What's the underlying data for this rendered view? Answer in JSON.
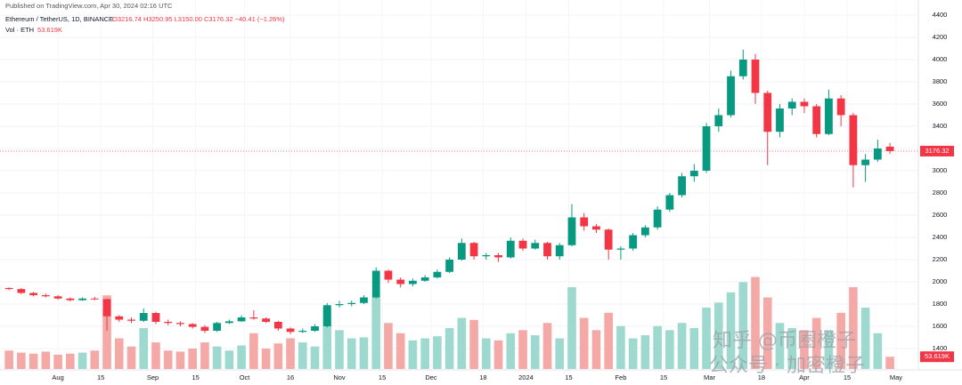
{
  "chart_data": {
    "type": "candlestick",
    "published": "Published on TradingView.com, Apr 30, 2024 02:16 UTC",
    "symbol": "Ethereum / TetherUS, 1D, BINANCE",
    "ohlc_label": "O3216.74 H3250.95 L3150.00 C3176.32 −40.41 (−1.26%)",
    "volume_title": "Vol · ETH",
    "volume_label": "53.619K",
    "watermark": [
      "知乎 @币圈橙子",
      "公众号 · 加密橙子"
    ],
    "up_color": "#089981",
    "down_color": "#f23645",
    "volume_up_color": "#9ed9d0",
    "volume_down_color": "#f5a9a7",
    "x": [
      -16,
      -12,
      -8,
      -4,
      0,
      4,
      8,
      12,
      16,
      20,
      24,
      28,
      32,
      36,
      40,
      44,
      48,
      52,
      56,
      60,
      64,
      68,
      72,
      76,
      80,
      84,
      88,
      92,
      96,
      100,
      104,
      108,
      112,
      116,
      120,
      124,
      128,
      132,
      136,
      140,
      144,
      148,
      152,
      156,
      160,
      164,
      168,
      172,
      176,
      180,
      184,
      188,
      192,
      196,
      200,
      204,
      208,
      212,
      216,
      220,
      224,
      228,
      232,
      236,
      240,
      244,
      248,
      252,
      256,
      260,
      264,
      268,
      272
    ],
    "open": [
      1945,
      1935,
      1900,
      1880,
      1870,
      1850,
      1835,
      1850,
      1845,
      1690,
      1660,
      1650,
      1720,
      1640,
      1630,
      1620,
      1595,
      1560,
      1630,
      1645,
      1680,
      1670,
      1640,
      1580,
      1550,
      1560,
      1600,
      1790,
      1800,
      1810,
      1860,
      2100,
      2020,
      1980,
      2010,
      2040,
      2090,
      2200,
      2350,
      2230,
      2240,
      2220,
      2370,
      2300,
      2350,
      2230,
      2330,
      2580,
      2500,
      2470,
      2290,
      2300,
      2420,
      2490,
      2650,
      2780,
      2950,
      3000,
      3400,
      3500,
      3850,
      4000,
      3700,
      3350,
      3560,
      3620,
      3580,
      3330,
      3650,
      3500,
      3050,
      3100,
      3216.74
    ],
    "high": [
      1950,
      1945,
      1910,
      1895,
      1880,
      1860,
      1860,
      1865,
      1850,
      1700,
      1680,
      1760,
      1730,
      1660,
      1645,
      1630,
      1610,
      1640,
      1660,
      1700,
      1745,
      1680,
      1650,
      1590,
      1580,
      1620,
      1810,
      1830,
      1830,
      1880,
      2130,
      2110,
      2040,
      2030,
      2060,
      2110,
      2220,
      2390,
      2360,
      2260,
      2260,
      2400,
      2390,
      2380,
      2360,
      2350,
      2700,
      2620,
      2520,
      2480,
      2320,
      2440,
      2510,
      2680,
      2800,
      2980,
      3060,
      3430,
      3560,
      3900,
      4090,
      4050,
      3720,
      3600,
      3650,
      3650,
      3600,
      3730,
      3680,
      3520,
      3150,
      3280,
      3250.95
    ],
    "low": [
      1925,
      1890,
      1870,
      1860,
      1840,
      1825,
      1830,
      1835,
      1560,
      1640,
      1630,
      1640,
      1620,
      1610,
      1600,
      1580,
      1540,
      1550,
      1620,
      1640,
      1660,
      1630,
      1560,
      1530,
      1540,
      1550,
      1590,
      1770,
      1780,
      1800,
      1850,
      1990,
      1950,
      1960,
      2000,
      2030,
      2080,
      2190,
      2200,
      2200,
      2180,
      2210,
      2280,
      2290,
      2200,
      2200,
      2320,
      2460,
      2440,
      2200,
      2200,
      2280,
      2400,
      2470,
      2630,
      2760,
      2900,
      2980,
      3350,
      3480,
      3820,
      3600,
      3050,
      3300,
      3500,
      3520,
      3300,
      3320,
      3400,
      2850,
      2900,
      3080,
      3150
    ],
    "close": [
      1935,
      1900,
      1880,
      1870,
      1850,
      1835,
      1850,
      1845,
      1690,
      1660,
      1650,
      1720,
      1640,
      1630,
      1620,
      1595,
      1560,
      1630,
      1645,
      1680,
      1670,
      1640,
      1580,
      1550,
      1560,
      1600,
      1790,
      1800,
      1810,
      1860,
      2100,
      2020,
      1980,
      2010,
      2040,
      2090,
      2200,
      2350,
      2230,
      2240,
      2220,
      2370,
      2300,
      2350,
      2230,
      2330,
      2580,
      2500,
      2470,
      2290,
      2300,
      2420,
      2490,
      2650,
      2780,
      2950,
      3000,
      3400,
      3500,
      3850,
      4000,
      3700,
      3350,
      3560,
      3620,
      3580,
      3330,
      3650,
      3500,
      3050,
      3100,
      3200,
      3176.32
    ],
    "volume": [
      180,
      160,
      150,
      170,
      140,
      150,
      160,
      180,
      720,
      300,
      220,
      400,
      260,
      180,
      170,
      200,
      260,
      220,
      180,
      230,
      350,
      200,
      250,
      300,
      260,
      220,
      600,
      380,
      300,
      310,
      700,
      450,
      350,
      280,
      300,
      320,
      400,
      500,
      480,
      300,
      280,
      350,
      380,
      330,
      450,
      300,
      800,
      500,
      380,
      550,
      420,
      300,
      330,
      420,
      380,
      450,
      400,
      600,
      650,
      750,
      850,
      900,
      700,
      450,
      400,
      380,
      500,
      380,
      550,
      800,
      600,
      350,
      120
    ],
    "xlim": [
      -17.5,
      281
    ],
    "ylim": [
      1320,
      4470
    ],
    "y2lim": [
      0,
      1000
    ],
    "yticks": [
      1400,
      1600,
      1800,
      2000,
      2200,
      2400,
      2600,
      2800,
      3000,
      3200,
      3400,
      3600,
      3800,
      4000,
      4200,
      4400
    ],
    "xticks": [
      {
        "value": 0,
        "label": "Aug"
      },
      {
        "value": 14,
        "label": "15"
      },
      {
        "value": 31,
        "label": "Sep"
      },
      {
        "value": 45,
        "label": "15"
      },
      {
        "value": 61,
        "label": "Oct"
      },
      {
        "value": 76,
        "label": "16"
      },
      {
        "value": 92,
        "label": "Nov"
      },
      {
        "value": 106,
        "label": "15"
      },
      {
        "value": 122,
        "label": "Dec"
      },
      {
        "value": 139,
        "label": "18"
      },
      {
        "value": 153,
        "label": "2024"
      },
      {
        "value": 167,
        "label": "15"
      },
      {
        "value": 184,
        "label": "Feb"
      },
      {
        "value": 198,
        "label": "15"
      },
      {
        "value": 213,
        "label": "Mar"
      },
      {
        "value": 230,
        "label": "18"
      },
      {
        "value": 244,
        "label": "Apr"
      },
      {
        "value": 258,
        "label": "15"
      },
      {
        "value": 274,
        "label": "May"
      }
    ],
    "grid": true
  }
}
